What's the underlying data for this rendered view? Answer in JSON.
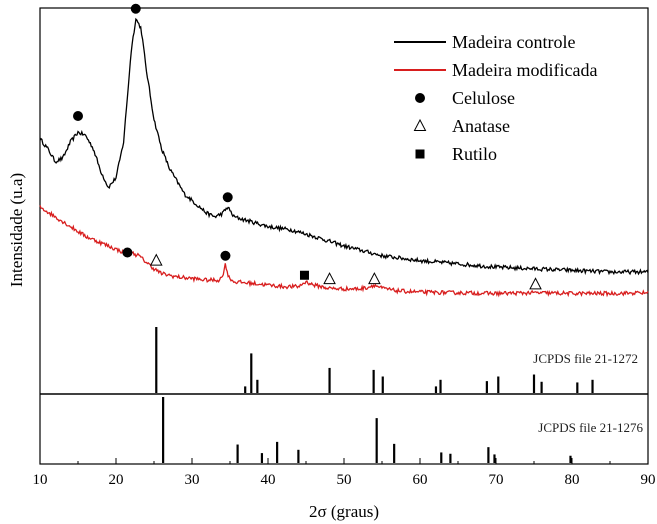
{
  "chart_data": {
    "type": "line",
    "xlabel": "2σ (graus)",
    "ylabel": "Intensidade (u.a)",
    "xlim": [
      10,
      90
    ],
    "xticks": [
      10,
      20,
      30,
      40,
      50,
      60,
      70,
      80,
      90
    ],
    "yticks_shown": false,
    "series": [
      {
        "name": "Madeira controle",
        "color": "#000000",
        "points": [
          [
            10,
            0.61
          ],
          [
            11,
            0.58
          ],
          [
            12,
            0.54
          ],
          [
            13,
            0.55
          ],
          [
            14,
            0.6
          ],
          [
            15,
            0.63
          ],
          [
            16,
            0.62
          ],
          [
            17,
            0.58
          ],
          [
            18,
            0.51
          ],
          [
            19,
            0.46
          ],
          [
            20,
            0.49
          ],
          [
            21,
            0.6
          ],
          [
            22,
            0.88
          ],
          [
            22.6,
            0.98
          ],
          [
            23.3,
            0.95
          ],
          [
            24,
            0.82
          ],
          [
            25,
            0.67
          ],
          [
            26,
            0.58
          ],
          [
            27,
            0.52
          ],
          [
            28,
            0.48
          ],
          [
            29,
            0.44
          ],
          [
            30,
            0.42
          ],
          [
            31,
            0.4
          ],
          [
            32,
            0.38
          ],
          [
            33,
            0.37
          ],
          [
            34,
            0.38
          ],
          [
            34.7,
            0.4
          ],
          [
            35.5,
            0.37
          ],
          [
            37,
            0.36
          ],
          [
            40,
            0.34
          ],
          [
            43,
            0.33
          ],
          [
            46,
            0.31
          ],
          [
            50,
            0.28
          ],
          [
            55,
            0.25
          ],
          [
            60,
            0.235
          ],
          [
            65,
            0.225
          ],
          [
            70,
            0.215
          ],
          [
            75,
            0.21
          ],
          [
            80,
            0.205
          ],
          [
            85,
            0.2
          ],
          [
            90,
            0.2
          ]
        ]
      },
      {
        "name": "Madeira modificada",
        "color": "#d81e1e",
        "points": [
          [
            10,
            0.4
          ],
          [
            12,
            0.37
          ],
          [
            14,
            0.34
          ],
          [
            16,
            0.31
          ],
          [
            18,
            0.29
          ],
          [
            20,
            0.27
          ],
          [
            21,
            0.26
          ],
          [
            22,
            0.26
          ],
          [
            23,
            0.25
          ],
          [
            24,
            0.23
          ],
          [
            25,
            0.21
          ],
          [
            26,
            0.195
          ],
          [
            28,
            0.185
          ],
          [
            30,
            0.18
          ],
          [
            32,
            0.175
          ],
          [
            33.5,
            0.175
          ],
          [
            34,
            0.185
          ],
          [
            34.4,
            0.225
          ],
          [
            34.8,
            0.185
          ],
          [
            35.5,
            0.17
          ],
          [
            38,
            0.165
          ],
          [
            40,
            0.16
          ],
          [
            42,
            0.155
          ],
          [
            44,
            0.155
          ],
          [
            45,
            0.17
          ],
          [
            46,
            0.16
          ],
          [
            48,
            0.15
          ],
          [
            50,
            0.148
          ],
          [
            52,
            0.148
          ],
          [
            53,
            0.152
          ],
          [
            54,
            0.16
          ],
          [
            55,
            0.15
          ],
          [
            57,
            0.142
          ],
          [
            60,
            0.138
          ],
          [
            65,
            0.136
          ],
          [
            70,
            0.134
          ],
          [
            75,
            0.136
          ],
          [
            80,
            0.134
          ],
          [
            85,
            0.134
          ],
          [
            90,
            0.136
          ]
        ]
      }
    ],
    "markers": [
      {
        "type": "Celulose",
        "x": 15,
        "y": 0.68
      },
      {
        "type": "Celulose",
        "x": 22.6,
        "y": 1.01
      },
      {
        "type": "Celulose",
        "x": 34.7,
        "y": 0.43
      },
      {
        "type": "Celulose",
        "x": 21.5,
        "y": 0.26
      },
      {
        "type": "Celulose",
        "x": 34.4,
        "y": 0.25
      },
      {
        "type": "Anatase",
        "x": 25.3,
        "y": 0.235
      },
      {
        "type": "Anatase",
        "x": 48.1,
        "y": 0.178
      },
      {
        "type": "Anatase",
        "x": 54.0,
        "y": 0.178
      },
      {
        "type": "Anatase",
        "x": 75.2,
        "y": 0.162
      },
      {
        "type": "Rutilo",
        "x": 44.8,
        "y": 0.19
      }
    ],
    "reference_patterns": [
      {
        "label": "JCPDS file 21-1272",
        "lines": [
          [
            25.3,
            1.0
          ],
          [
            37.0,
            0.1
          ],
          [
            37.8,
            0.6
          ],
          [
            38.6,
            0.2
          ],
          [
            48.1,
            0.38
          ],
          [
            53.9,
            0.35
          ],
          [
            55.1,
            0.25
          ],
          [
            62.1,
            0.1
          ],
          [
            62.7,
            0.2
          ],
          [
            68.8,
            0.18
          ],
          [
            70.3,
            0.25
          ],
          [
            75.0,
            0.28
          ],
          [
            76.0,
            0.17
          ],
          [
            80.7,
            0.16
          ],
          [
            82.7,
            0.2
          ]
        ]
      },
      {
        "label": "JCPDS file 21-1276",
        "lines": [
          [
            26.2,
            1.0
          ],
          [
            36.0,
            0.28
          ],
          [
            39.2,
            0.15
          ],
          [
            41.2,
            0.32
          ],
          [
            44.0,
            0.2
          ],
          [
            54.3,
            0.68
          ],
          [
            56.6,
            0.29
          ],
          [
            62.8,
            0.16
          ],
          [
            64.0,
            0.14
          ],
          [
            69.0,
            0.24
          ],
          [
            69.8,
            0.13
          ],
          [
            79.8,
            0.11
          ]
        ]
      }
    ],
    "legend": {
      "placement": "top-right",
      "entries": [
        {
          "kind": "line",
          "label": "Madeira controle",
          "color": "#000000"
        },
        {
          "kind": "line",
          "label": "Madeira modificada",
          "color": "#d81e1e"
        },
        {
          "kind": "circle",
          "label": "Celulose"
        },
        {
          "kind": "triangle",
          "label": "Anatase"
        },
        {
          "kind": "square",
          "label": "Rutilo"
        }
      ]
    }
  }
}
